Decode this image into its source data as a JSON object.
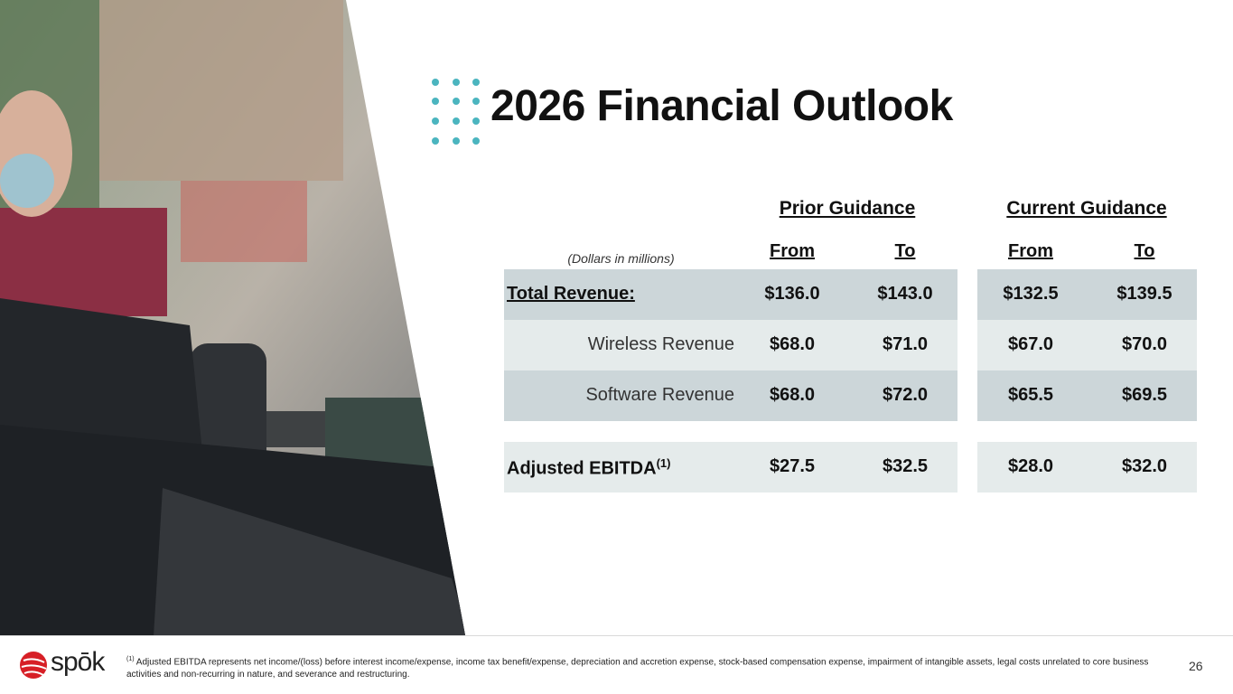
{
  "header": {
    "title": "2026 Financial Outlook"
  },
  "table": {
    "groups": [
      "Prior Guidance",
      "Current Guidance"
    ],
    "unit_note": "(Dollars in millions)",
    "columns": [
      "From",
      "To",
      "From",
      "To"
    ],
    "rows": [
      {
        "label": "Total Revenue:",
        "values": [
          "$136.0",
          "$143.0",
          "$132.5",
          "$139.5"
        ]
      },
      {
        "label": "Wireless Revenue",
        "values": [
          "$68.0",
          "$71.0",
          "$67.0",
          "$70.0"
        ]
      },
      {
        "label": "Software Revenue",
        "values": [
          "$68.0",
          "$72.0",
          "$65.5",
          "$69.5"
        ]
      },
      {
        "label": "Adjusted EBITDA",
        "label_note": "(1)",
        "values": [
          "$27.5",
          "$32.5",
          "$28.0",
          "$32.0"
        ]
      }
    ]
  },
  "footer": {
    "logo": "spōk",
    "footnote_marker": "(1)",
    "footnote": "Adjusted EBITDA represents net income/(loss) before interest income/expense, income tax benefit/expense, depreciation and accretion expense, stock-based compensation expense, impairment of intangible assets, legal costs unrelated to core business activities and non-recurring in nature, and severance and restructuring.",
    "page_number": "26"
  }
}
